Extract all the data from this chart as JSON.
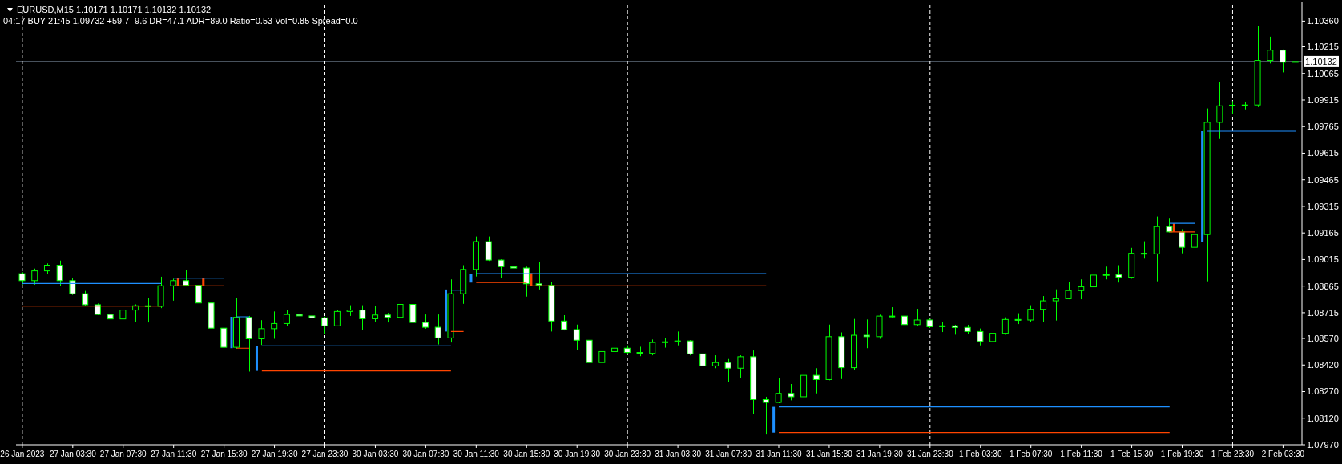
{
  "chart_data": {
    "type": "candlestick",
    "title": "EURUSD,M15 1.10171 1.10171 1.10132 1.10132",
    "subtitle": "04:17 BUY 21:45 1.09732 +59.7 -9.6 DR=47.1 ADR=89.0 Ratio=0.53 Vol=0.85 Spread=0.0",
    "categories": [
      "26 Jan 2023",
      null,
      null,
      null,
      "27 Jan 03:30",
      null,
      null,
      null,
      "27 Jan 07:30",
      null,
      null,
      null,
      "27 Jan 11:30",
      null,
      null,
      null,
      "27 Jan 15:30",
      null,
      null,
      null,
      "27 Jan 19:30",
      null,
      null,
      null,
      "27 Jan 23:30",
      null,
      null,
      null,
      "30 Jan 03:30",
      null,
      null,
      null,
      "30 Jan 07:30",
      null,
      null,
      null,
      "30 Jan 11:30",
      null,
      null,
      null,
      "30 Jan 15:30",
      null,
      null,
      null,
      "30 Jan 19:30",
      null,
      null,
      null,
      "30 Jan 23:30",
      null,
      null,
      null,
      "31 Jan 03:30",
      null,
      null,
      null,
      "31 Jan 07:30",
      null,
      null,
      null,
      "31 Jan 11:30",
      null,
      null,
      null,
      "31 Jan 15:30",
      null,
      null,
      null,
      "31 Jan 19:30",
      null,
      null,
      null,
      "31 Jan 23:30",
      null,
      null,
      null,
      "1 Feb 03:30",
      null,
      null,
      null,
      "1 Feb 07:30",
      null,
      null,
      null,
      "1 Feb 11:30",
      null,
      null,
      null,
      "1 Feb 15:30",
      null,
      null,
      null,
      "1 Feb 19:30",
      null,
      null,
      null,
      "1 Feb 23:30",
      null,
      null,
      null,
      "2 Feb 03:30",
      null
    ],
    "ohlc": [
      [
        1.08935,
        1.08943,
        1.08874,
        1.08896
      ],
      [
        1.08896,
        1.08964,
        1.08873,
        1.08951
      ],
      [
        1.08951,
        1.08993,
        1.08935,
        1.08983
      ],
      [
        1.08983,
        1.09009,
        1.08867,
        1.08896
      ],
      [
        1.08896,
        1.08912,
        1.08815,
        1.08822
      ],
      [
        1.08822,
        1.08838,
        1.08754,
        1.0876
      ],
      [
        1.0876,
        1.08767,
        1.08702,
        1.08705
      ],
      [
        1.08705,
        1.08708,
        1.08662,
        1.0868
      ],
      [
        1.0868,
        1.08747,
        1.08675,
        1.0873
      ],
      [
        1.0873,
        1.08762,
        1.08663,
        1.08754
      ],
      [
        1.08754,
        1.08799,
        1.0866,
        1.08751
      ],
      [
        1.08751,
        1.08918,
        1.08741,
        1.08867
      ],
      [
        1.08867,
        1.08907,
        1.08783,
        1.08896
      ],
      [
        1.08896,
        1.08956,
        1.08867,
        1.0887
      ],
      [
        1.0887,
        1.08872,
        1.08757,
        1.0877
      ],
      [
        1.0877,
        1.08786,
        1.08601,
        1.08628
      ],
      [
        1.08628,
        1.08786,
        1.08455,
        1.0852
      ],
      [
        1.0852,
        1.08797,
        1.08512,
        1.08689
      ],
      [
        1.08689,
        1.08697,
        1.08383,
        1.08568
      ],
      [
        1.08568,
        1.08673,
        1.08533,
        1.08625
      ],
      [
        1.08625,
        1.08722,
        1.08568,
        1.08654
      ],
      [
        1.08654,
        1.0873,
        1.08641,
        1.08705
      ],
      [
        1.08705,
        1.08738,
        1.08673,
        1.08697
      ],
      [
        1.08697,
        1.08709,
        1.08644,
        1.08686
      ],
      [
        1.08686,
        1.08693,
        1.08596,
        1.08641
      ],
      [
        1.08641,
        1.0873,
        1.08638,
        1.08722
      ],
      [
        1.08722,
        1.08757,
        1.08697,
        1.0873
      ],
      [
        1.0873,
        1.08757,
        1.08617,
        1.08681
      ],
      [
        1.08681,
        1.08754,
        1.08665,
        1.08702
      ],
      [
        1.08702,
        1.08714,
        1.0866,
        1.08689
      ],
      [
        1.08689,
        1.08799,
        1.08681,
        1.08762
      ],
      [
        1.08762,
        1.08783,
        1.08654,
        1.0866
      ],
      [
        1.0866,
        1.08705,
        1.08625,
        1.08633
      ],
      [
        1.08633,
        1.08705,
        1.08536,
        1.08573
      ],
      [
        1.08573,
        1.08903,
        1.08547,
        1.08822
      ],
      [
        1.08822,
        1.08983,
        1.08765,
        1.08959
      ],
      [
        1.08959,
        1.09145,
        1.08919,
        1.09116
      ],
      [
        1.09116,
        1.09145,
        1.09007,
        1.09012
      ],
      [
        1.09012,
        1.09016,
        1.08911,
        1.08975
      ],
      [
        1.08975,
        1.09116,
        1.08932,
        1.08967
      ],
      [
        1.08967,
        1.08975,
        1.08806,
        1.08878
      ],
      [
        1.08878,
        1.09003,
        1.08846,
        1.0887
      ],
      [
        1.0887,
        1.0889,
        1.08609,
        1.08668
      ],
      [
        1.08668,
        1.08701,
        1.08615,
        1.0862
      ],
      [
        1.0862,
        1.08648,
        1.08507,
        1.0856
      ],
      [
        1.0856,
        1.08572,
        1.08399,
        1.08434
      ],
      [
        1.08434,
        1.08507,
        1.08415,
        1.08496
      ],
      [
        1.08496,
        1.08551,
        1.08454,
        1.08515
      ],
      [
        1.08515,
        1.08531,
        1.0848,
        1.08491
      ],
      [
        1.08491,
        1.08523,
        1.0847,
        1.08486
      ],
      [
        1.08486,
        1.08564,
        1.08475,
        1.08547
      ],
      [
        1.08547,
        1.08572,
        1.08518,
        1.08551
      ],
      [
        1.08551,
        1.08609,
        1.08531,
        1.08556
      ],
      [
        1.08556,
        1.0856,
        1.08475,
        1.08483
      ],
      [
        1.08483,
        1.08491,
        1.08402,
        1.08415
      ],
      [
        1.08415,
        1.08475,
        1.08402,
        1.08434
      ],
      [
        1.08434,
        1.08454,
        1.08322,
        1.08402
      ],
      [
        1.08402,
        1.08475,
        1.08346,
        1.08467
      ],
      [
        1.08467,
        1.08502,
        1.08144,
        1.08225
      ],
      [
        1.08225,
        1.08241,
        1.08028,
        1.08209
      ],
      [
        1.08209,
        1.08346,
        1.08205,
        1.0826
      ],
      [
        1.0826,
        1.08313,
        1.08221,
        1.08241
      ],
      [
        1.08241,
        1.08389,
        1.08228,
        1.08362
      ],
      [
        1.08362,
        1.08402,
        1.0826,
        1.08338
      ],
      [
        1.08338,
        1.08648,
        1.08334,
        1.0858
      ],
      [
        1.0858,
        1.08604,
        1.08341,
        1.08405
      ],
      [
        1.08405,
        1.0868,
        1.08394,
        1.08588
      ],
      [
        1.08588,
        1.08677,
        1.08515,
        1.0858
      ],
      [
        1.0858,
        1.08704,
        1.08568,
        1.08696
      ],
      [
        1.08696,
        1.08746,
        1.08689,
        1.08696
      ],
      [
        1.08696,
        1.08742,
        1.08606,
        1.08648
      ],
      [
        1.08648,
        1.08737,
        1.0864,
        1.08674
      ],
      [
        1.08674,
        1.08681,
        1.08629,
        1.08636
      ],
      [
        1.08636,
        1.08662,
        1.08606,
        1.08641
      ],
      [
        1.08641,
        1.08647,
        1.08591,
        1.08632
      ],
      [
        1.08632,
        1.08647,
        1.08596,
        1.08609
      ],
      [
        1.08609,
        1.08626,
        1.08531,
        1.08553
      ],
      [
        1.08553,
        1.08606,
        1.08526,
        1.08599
      ],
      [
        1.08599,
        1.08689,
        1.08591,
        1.08677
      ],
      [
        1.08677,
        1.08712,
        1.08651,
        1.08674
      ],
      [
        1.08674,
        1.08757,
        1.08662,
        1.08734
      ],
      [
        1.08734,
        1.08809,
        1.08662,
        1.08782
      ],
      [
        1.08782,
        1.08847,
        1.08671,
        1.08794
      ],
      [
        1.08794,
        1.08888,
        1.08791,
        1.0884
      ],
      [
        1.0884,
        1.08903,
        1.08791,
        1.08861
      ],
      [
        1.08861,
        1.08978,
        1.08855,
        1.08927
      ],
      [
        1.08927,
        1.08975,
        1.08903,
        1.0893
      ],
      [
        1.0893,
        1.08983,
        1.08885,
        1.08915
      ],
      [
        1.08915,
        1.09081,
        1.08907,
        1.0905
      ],
      [
        1.0905,
        1.09118,
        1.0902,
        1.09047
      ],
      [
        1.09047,
        1.09258,
        1.08892,
        1.09201
      ],
      [
        1.09201,
        1.09246,
        1.09168,
        1.09171
      ],
      [
        1.09171,
        1.09186,
        1.0905,
        1.09084
      ],
      [
        1.09084,
        1.09189,
        1.09066,
        1.09156
      ],
      [
        1.09156,
        1.09867,
        1.08892,
        1.09789
      ],
      [
        1.09789,
        1.10017,
        1.09695,
        1.09882
      ],
      [
        1.09882,
        1.09909,
        1.09837,
        1.09886
      ],
      [
        1.09886,
        1.09906,
        1.09862,
        1.09887
      ],
      [
        1.09887,
        1.10334,
        1.09875,
        1.10138
      ],
      [
        1.10138,
        1.10272,
        1.10121,
        1.10196
      ],
      [
        1.10196,
        1.102,
        1.10071,
        1.10128
      ],
      [
        1.10128,
        1.10193,
        1.10118,
        1.10132
      ]
    ],
    "color": "#00ff00",
    "colors": [
      "#ffffff",
      "#000000",
      "#000000",
      "#ffffff",
      "#ffffff",
      "#ffffff",
      "#ffffff",
      "#ffffff",
      "#000000",
      "#000000",
      "#ffffff",
      "#000000",
      "#000000",
      "#ffffff",
      "#ffffff",
      "#ffffff",
      "#ffffff",
      "#000000",
      "#ffffff",
      "#000000",
      "#000000",
      "#000000",
      "#ffffff",
      "#ffffff",
      "#ffffff",
      "#000000",
      "#000000",
      "#ffffff",
      "#000000",
      "#ffffff",
      "#000000",
      "#ffffff",
      "#ffffff",
      "#ffffff",
      "#000000",
      "#000000",
      "#000000",
      "#ffffff",
      "#ffffff",
      "#ffffff",
      "#ffffff",
      "#ffffff",
      "#ffffff",
      "#ffffff",
      "#ffffff",
      "#ffffff",
      "#000000",
      "#000000",
      "#ffffff",
      "#ffffff",
      "#000000",
      "#000000",
      "#000000",
      "#ffffff",
      "#ffffff",
      "#000000",
      "#ffffff",
      "#000000",
      "#ffffff",
      "#ffffff",
      "#000000",
      "#ffffff",
      "#000000",
      "#ffffff",
      "#000000",
      "#ffffff",
      "#000000",
      "#ffffff",
      "#000000",
      "#000000",
      "#ffffff",
      "#000000",
      "#ffffff",
      "#000000",
      "#ffffff",
      "#ffffff",
      "#ffffff",
      "#000000",
      "#000000",
      "#ffffff",
      "#000000",
      "#000000",
      "#000000",
      "#000000",
      "#000000",
      "#000000",
      "#000000",
      "#ffffff",
      "#000000",
      "#ffffff",
      "#000000",
      "#ffffff",
      "#ffffff",
      "#000000",
      "#000000",
      "#000000",
      "#000000",
      "#000000",
      "#000000",
      "#000000",
      "#ffffff",
      "#000000"
    ],
    "series": [
      {
        "type": "line",
        "color": "#1e90ff",
        "values": [
          1.0888,
          1.0888,
          1.0888,
          1.0888,
          1.0888,
          1.0888,
          1.0888,
          1.0888,
          1.0888,
          1.0888,
          1.0888,
          1.0888,
          null,
          null,
          null,
          null,
          null,
          1.08692,
          1.08692,
          null,
          null,
          null,
          null,
          null,
          null,
          null,
          null,
          null,
          null,
          null,
          null,
          null,
          null,
          null,
          1.08843,
          1.08843,
          null,
          null,
          null,
          null,
          null,
          null,
          null,
          null,
          null,
          null,
          null,
          null,
          null,
          null,
          null,
          null,
          null,
          null,
          null,
          null,
          null,
          null,
          null,
          null,
          1.08184,
          1.08184,
          1.08184,
          1.08184,
          1.08184,
          1.08184,
          1.08184,
          1.08184,
          1.08184,
          1.08184,
          1.08184,
          1.08184,
          1.08184,
          1.08184,
          1.08184,
          1.08184,
          1.08184,
          1.08184,
          1.08184,
          1.08184,
          1.08184,
          1.08184,
          1.08184,
          1.08184,
          1.08184,
          1.08184,
          1.08184,
          1.08184,
          1.08184,
          1.08184,
          1.08184,
          1.08184,
          null,
          null,
          1.09739,
          1.09739,
          1.09739,
          1.09739,
          1.09739,
          1.09739,
          1.09739,
          1.09739
        ]
      },
      {
        "type": "line",
        "color": "#1e90ff",
        "values": [
          null,
          null,
          null,
          null,
          null,
          null,
          null,
          null,
          null,
          null,
          null,
          null,
          1.0891,
          1.0891,
          1.0891,
          1.0891,
          1.0891,
          null,
          null,
          1.08528,
          1.08528,
          1.08528,
          1.08528,
          1.08528,
          1.08528,
          1.08528,
          1.08528,
          1.08528,
          1.08528,
          1.08528,
          1.08528,
          1.08528,
          1.08528,
          1.08528,
          1.08528,
          null,
          1.08935,
          1.08935,
          1.08935,
          1.08935,
          1.08935,
          1.08935,
          1.08935,
          1.08935,
          1.08935,
          1.08935,
          1.08935,
          1.08935,
          1.08935,
          1.08935,
          1.08935,
          1.08935,
          1.08935,
          1.08935,
          1.08935,
          1.08935,
          1.08935,
          1.08935,
          1.08935,
          1.08935,
          null,
          null,
          null,
          null,
          null,
          null,
          null,
          null,
          null,
          null,
          null,
          null,
          null,
          null,
          null,
          null,
          null,
          null,
          null,
          null,
          null,
          null,
          null,
          null,
          null,
          null,
          null,
          null,
          null,
          null,
          null,
          1.09219,
          1.09219,
          1.09219,
          null,
          null,
          null,
          null,
          null,
          null,
          null,
          null
        ]
      },
      {
        "type": "line",
        "color": "#ff4500",
        "values": [
          1.08752,
          1.08752,
          1.08752,
          1.08752,
          1.08752,
          1.08752,
          1.08752,
          1.08752,
          1.08752,
          1.08752,
          1.08752,
          1.08752,
          null,
          null,
          null,
          null,
          null,
          1.08515,
          1.08515,
          null,
          null,
          null,
          null,
          null,
          null,
          null,
          null,
          null,
          null,
          null,
          null,
          null,
          null,
          null,
          1.08609,
          1.08609,
          null,
          null,
          null,
          null,
          1.08867,
          1.08867,
          1.08867,
          1.08867,
          1.08867,
          1.08867,
          1.08867,
          1.08867,
          1.08867,
          1.08867,
          1.08867,
          1.08867,
          1.08867,
          1.08867,
          1.08867,
          1.08867,
          1.08867,
          1.08867,
          1.08867,
          1.08867,
          null,
          null,
          null,
          null,
          null,
          null,
          null,
          null,
          null,
          null,
          null,
          null,
          null,
          null,
          null,
          null,
          null,
          null,
          null,
          null,
          null,
          null,
          null,
          null,
          null,
          null,
          null,
          null,
          null,
          null,
          null,
          1.09171,
          1.09171,
          1.09171,
          null,
          null,
          null,
          null,
          null,
          null,
          null,
          null
        ]
      },
      {
        "type": "line",
        "color": "#ff4500",
        "values": [
          null,
          null,
          null,
          null,
          null,
          null,
          null,
          null,
          null,
          null,
          null,
          null,
          1.08867,
          1.08867,
          1.08867,
          1.08867,
          1.08867,
          null,
          null,
          1.08387,
          1.08387,
          1.08387,
          1.08387,
          1.08387,
          1.08387,
          1.08387,
          1.08387,
          1.08387,
          1.08387,
          1.08387,
          1.08387,
          1.08387,
          1.08387,
          1.08387,
          1.08387,
          null,
          1.08885,
          1.08885,
          1.08885,
          1.08885,
          1.08885,
          null,
          null,
          null,
          null,
          null,
          null,
          null,
          null,
          null,
          null,
          null,
          null,
          null,
          null,
          null,
          null,
          null,
          null,
          null,
          1.08039,
          1.08039,
          1.08039,
          1.08039,
          1.08039,
          1.08039,
          1.08039,
          1.08039,
          1.08039,
          1.08039,
          1.08039,
          1.08039,
          1.08039,
          1.08039,
          1.08039,
          1.08039,
          1.08039,
          1.08039,
          1.08039,
          1.08039,
          1.08039,
          1.08039,
          1.08039,
          1.08039,
          1.08039,
          1.08039,
          1.08039,
          1.08039,
          1.08039,
          1.08039,
          1.08039,
          1.08039,
          null,
          null,
          1.09114,
          1.09114,
          1.09114,
          1.09114,
          1.09114,
          1.09114,
          1.09114,
          1.09114
        ]
      },
      {
        "type": "bar",
        "color": "#1e90ff",
        "base": [
          null,
          null,
          null,
          null,
          null,
          null,
          null,
          null,
          null,
          null,
          null,
          null,
          null,
          null,
          null,
          null,
          null,
          1.08515,
          null,
          1.08387,
          null,
          null,
          null,
          null,
          null,
          null,
          null,
          null,
          null,
          null,
          null,
          null,
          null,
          null,
          1.08609,
          null,
          1.08885,
          null,
          null,
          null,
          null,
          null,
          null,
          null,
          null,
          null,
          null,
          null,
          null,
          null,
          null,
          null,
          null,
          null,
          null,
          null,
          null,
          null,
          null,
          null,
          1.08039,
          null,
          null,
          null,
          null,
          null,
          null,
          null,
          null,
          null,
          null,
          null,
          null,
          null,
          null,
          null,
          null,
          null,
          null,
          null,
          null,
          null,
          null,
          null,
          null,
          null,
          null,
          null,
          null,
          null,
          null,
          null,
          null,
          null,
          1.09114,
          null,
          null,
          null,
          null,
          null,
          null,
          null
        ],
        "values": [
          null,
          null,
          null,
          null,
          null,
          null,
          null,
          null,
          null,
          null,
          null,
          null,
          null,
          null,
          null,
          null,
          null,
          0.00177,
          null,
          0.00141,
          null,
          null,
          null,
          null,
          null,
          null,
          null,
          null,
          null,
          null,
          null,
          null,
          null,
          null,
          0.00237,
          null,
          0.0005,
          null,
          null,
          null,
          null,
          null,
          null,
          null,
          null,
          null,
          null,
          null,
          null,
          null,
          null,
          null,
          null,
          null,
          null,
          null,
          null,
          null,
          null,
          null,
          0.00145,
          null,
          null,
          null,
          null,
          null,
          null,
          null,
          null,
          null,
          null,
          null,
          null,
          null,
          null,
          null,
          null,
          null,
          null,
          null,
          null,
          null,
          null,
          null,
          null,
          null,
          null,
          null,
          null,
          null,
          null,
          null,
          null,
          null,
          0.00625,
          null,
          null,
          null,
          null,
          null,
          null,
          null
        ]
      },
      {
        "type": "bar",
        "color": "#ff4500",
        "base": [
          null,
          null,
          null,
          null,
          null,
          null,
          null,
          null,
          null,
          null,
          null,
          null,
          1.08867,
          null,
          1.08867,
          null,
          null,
          null,
          null,
          null,
          null,
          null,
          null,
          null,
          null,
          null,
          null,
          null,
          null,
          null,
          null,
          null,
          null,
          null,
          null,
          null,
          null,
          null,
          null,
          null,
          1.08867,
          null,
          null,
          null,
          null,
          null,
          null,
          null,
          null,
          null,
          null,
          null,
          null,
          null,
          null,
          null,
          null,
          null,
          null,
          null,
          null,
          null,
          null,
          null,
          null,
          null,
          null,
          null,
          null,
          null,
          null,
          null,
          null,
          null,
          null,
          null,
          null,
          null,
          null,
          null,
          null,
          null,
          null,
          null,
          null,
          null,
          null,
          null,
          null,
          null,
          null,
          1.09171,
          null,
          null,
          null,
          null,
          null,
          null,
          null,
          null,
          null,
          null
        ],
        "values": [
          null,
          null,
          null,
          null,
          null,
          null,
          null,
          null,
          null,
          null,
          null,
          null,
          0.00043,
          null,
          0.00043,
          null,
          null,
          null,
          null,
          null,
          null,
          null,
          null,
          null,
          null,
          null,
          null,
          null,
          null,
          null,
          null,
          null,
          null,
          null,
          null,
          null,
          null,
          null,
          null,
          null,
          0.00071,
          null,
          null,
          null,
          null,
          null,
          null,
          null,
          null,
          null,
          null,
          null,
          null,
          null,
          null,
          null,
          null,
          null,
          null,
          null,
          null,
          null,
          null,
          null,
          null,
          null,
          null,
          null,
          null,
          null,
          null,
          null,
          null,
          null,
          null,
          null,
          null,
          null,
          null,
          null,
          null,
          null,
          null,
          null,
          null,
          null,
          null,
          null,
          null,
          null,
          null,
          0.00048,
          null,
          null,
          null,
          null,
          null,
          null,
          null,
          null,
          null,
          null
        ]
      }
    ],
    "ylim": [
      1.0797,
      1.1047
    ],
    "yticks": [
      {
        "value": 1.0797,
        "label": "1.07970"
      },
      {
        "value": 1.0812,
        "label": "1.08120"
      },
      {
        "value": 1.0827,
        "label": "1.08270"
      },
      {
        "value": 1.0842,
        "label": "1.08420"
      },
      {
        "value": 1.0857,
        "label": "1.08570"
      },
      1.08715,
      1.08865,
      1.09015,
      1.09165,
      1.09315,
      1.09465,
      1.09615,
      1.09765,
      1.09915,
      1.10065,
      1.10215,
      {
        "value": 1.1036,
        "label": "1.10360"
      }
    ],
    "ref_lines": [
      {
        "axis": "y",
        "value": 1.10132,
        "label": "1.10132",
        "color": "#778899"
      },
      {
        "axis": "x",
        "value": "26 Jan 2023",
        "color": "#ffffff",
        "line_style": "dashed"
      },
      {
        "axis": "x",
        "value": "27 Jan 23:30",
        "color": "#ffffff",
        "line_style": "dashed"
      },
      {
        "axis": "x",
        "value": "30 Jan 23:30",
        "color": "#ffffff",
        "line_style": "dashed"
      },
      {
        "axis": "x",
        "value": "31 Jan 23:30",
        "color": "#ffffff",
        "line_style": "dashed"
      },
      {
        "axis": "x",
        "value": "1 Feb 23:30",
        "color": "#ffffff",
        "line_style": "dashed"
      }
    ]
  }
}
